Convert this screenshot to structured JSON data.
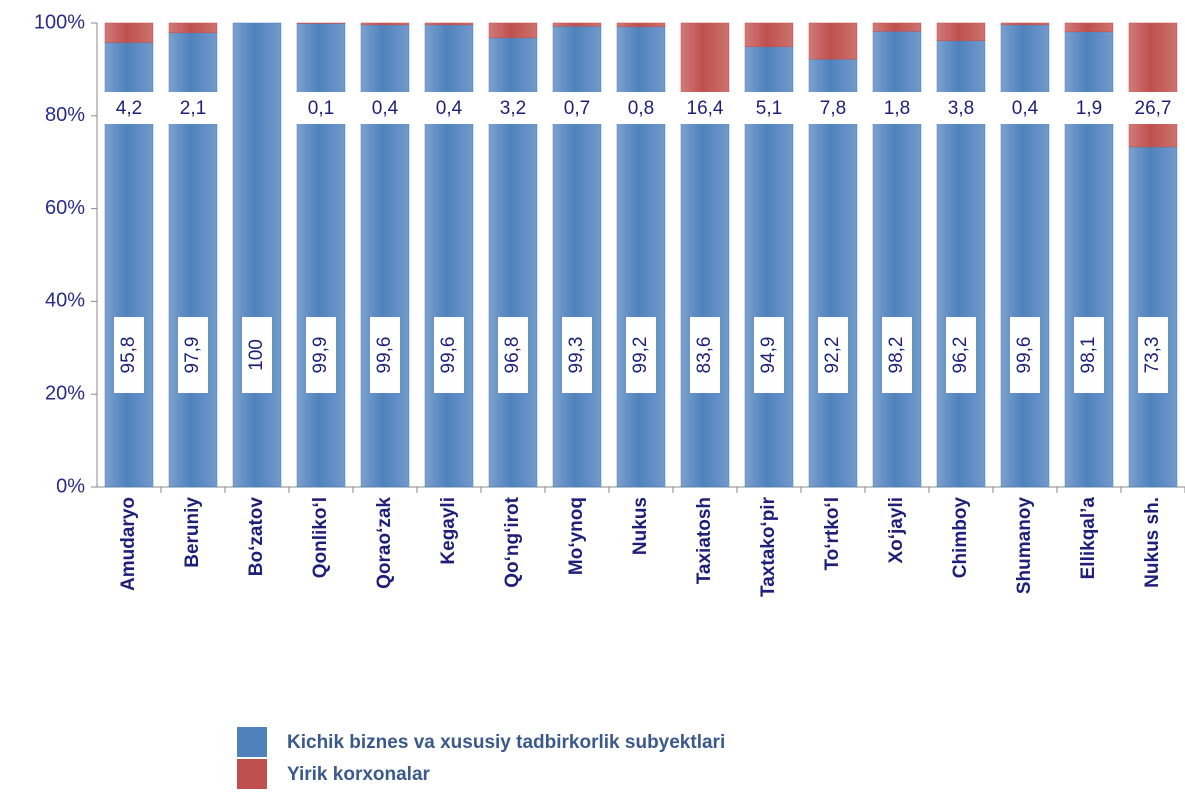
{
  "chart_data": {
    "type": "stacked_bar",
    "categories": [
      "Amudaryo",
      "Beruniy",
      "Bo‘zatov",
      "Qonliko‘l",
      "Qorao‘zak",
      "Kegayli",
      "Qo‘ng‘irot",
      "Mo‘ynoq",
      "Nukus",
      "Taxiatosh",
      "Taxtako‘pir",
      "To‘rtko‘l",
      "Xo‘jayli",
      "Chimboy",
      "Shumanoy",
      "Ellikqal’a",
      "Nukus sh."
    ],
    "series": [
      {
        "name": "Kichik biznes va xususiy tadbirkorlik subyektlari",
        "color": "#4f81bd",
        "values": [
          95.8,
          97.9,
          100,
          99.9,
          99.6,
          99.6,
          96.8,
          99.3,
          99.2,
          83.6,
          94.9,
          92.2,
          98.2,
          96.2,
          99.6,
          98.1,
          73.3
        ],
        "value_labels": [
          "95,8",
          "97,9",
          "100",
          "99,9",
          "99,6",
          "99,6",
          "96,8",
          "99,3",
          "99,2",
          "83,6",
          "94,9",
          "92,2",
          "98,2",
          "96,2",
          "99,6",
          "98,1",
          "73,3"
        ]
      },
      {
        "name": "Yirik korxonalar",
        "color": "#c0504d",
        "values": [
          4.2,
          2.1,
          0,
          0.1,
          0.4,
          0.4,
          3.2,
          0.7,
          0.8,
          16.4,
          5.1,
          7.8,
          1.8,
          3.8,
          0.4,
          1.9,
          26.7
        ],
        "value_labels": [
          "4,2",
          "2,1",
          null,
          "0,1",
          "0,4",
          "0,4",
          "3,2",
          "0,7",
          "0,8",
          "16,4",
          "5,1",
          "7,8",
          "1,8",
          "3,8",
          "0,4",
          "1,9",
          "26,7"
        ]
      }
    ],
    "ylim": [
      0,
      100
    ],
    "yticks": [
      {
        "value": 0,
        "label": "0%"
      },
      {
        "value": 20,
        "label": "20%"
      },
      {
        "value": 40,
        "label": "40%"
      },
      {
        "value": 60,
        "label": "60%"
      },
      {
        "value": 80,
        "label": "80%"
      },
      {
        "value": 100,
        "label": "100%"
      }
    ]
  }
}
